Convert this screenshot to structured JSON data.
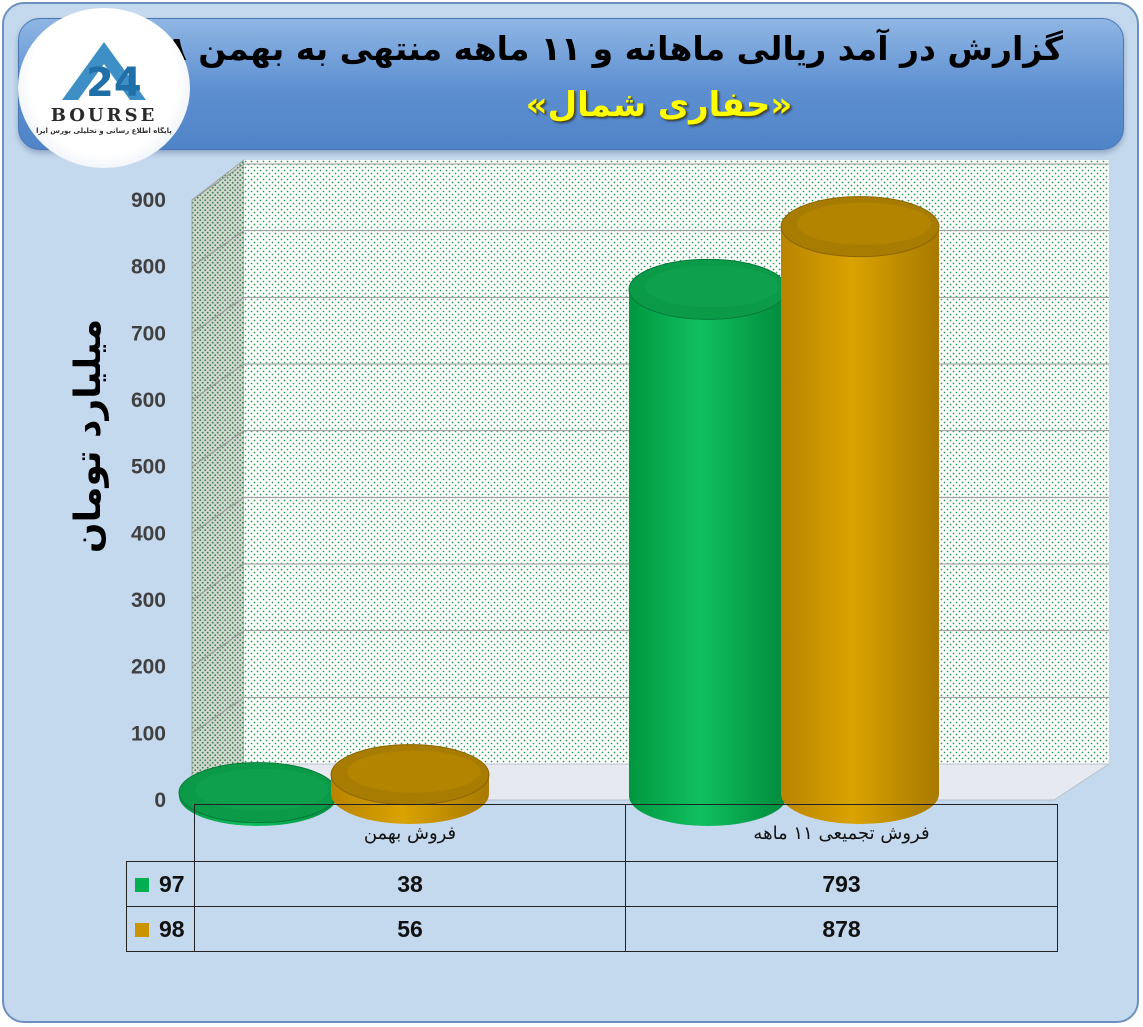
{
  "header": {
    "title": "گزارش در آمد ریالی ماهانه و ۱۱ ماهه منتهی به بهمن ۹۸",
    "subtitle": "«حفاری شمال»"
  },
  "logo": {
    "word": "BOURSE",
    "tagline": "پایگاه اطلاع رسانی و تحلیلی بورس ایرا"
  },
  "colors": {
    "green": "#00b050",
    "gold": "#c99400"
  },
  "chart_data": {
    "type": "bar",
    "style": "3d-cylinder",
    "title": "",
    "ylabel": "میلیارد تومان",
    "ylim": [
      0,
      900
    ],
    "yticks": [
      0,
      100,
      200,
      300,
      400,
      500,
      600,
      700,
      800,
      900
    ],
    "categories": [
      "فروش بهمن",
      "فروش تجمیعی ۱۱ ماهه"
    ],
    "series": [
      {
        "name": "97",
        "color": "#00b050",
        "values": [
          38,
          793
        ]
      },
      {
        "name": "98",
        "color": "#c99400",
        "values": [
          56,
          878
        ]
      }
    ],
    "grid": true,
    "legend": "data-table"
  },
  "table": {
    "category_labels": [
      "فروش بهمن",
      "فروش تجمیعی ۱۱ ماهه"
    ],
    "rows": [
      {
        "series": "97",
        "values": [
          "38",
          "793"
        ]
      },
      {
        "series": "98",
        "values": [
          "56",
          "878"
        ]
      }
    ]
  }
}
